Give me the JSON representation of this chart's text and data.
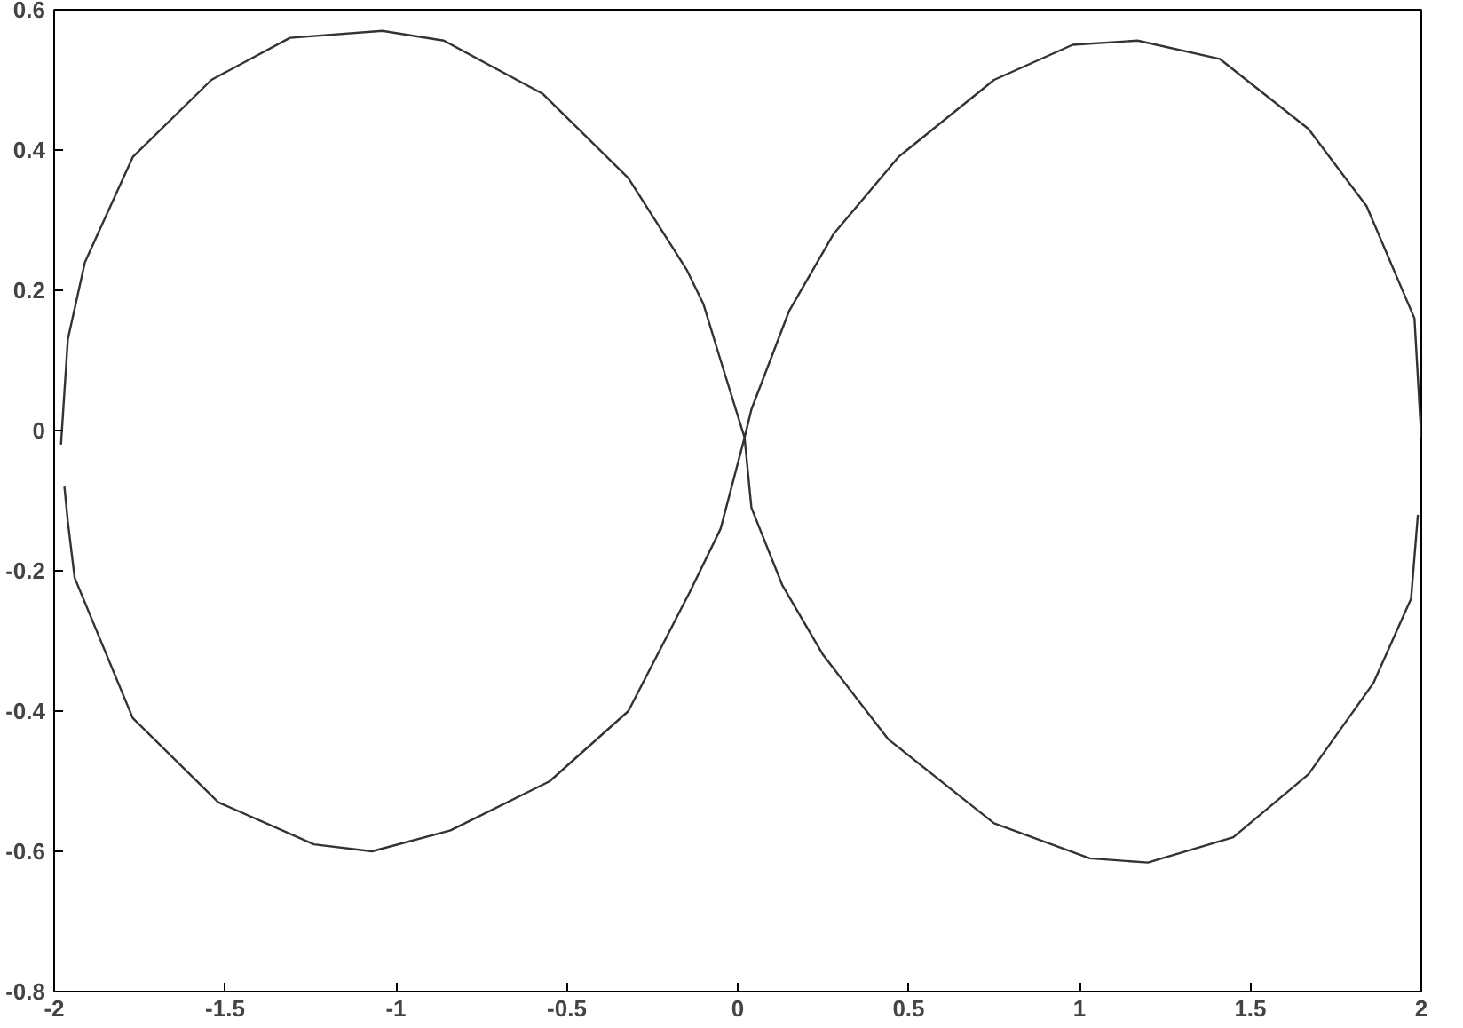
{
  "chart_data": {
    "type": "line",
    "xlim": [
      -2,
      2
    ],
    "ylim": [
      -0.8,
      0.6
    ],
    "xticks": [
      -2,
      -1.5,
      -1,
      -0.5,
      0,
      0.5,
      1,
      1.5,
      2
    ],
    "yticks": [
      -0.8,
      -0.6,
      -0.4,
      -0.2,
      0,
      0.2,
      0.4,
      0.6
    ],
    "marker": "none",
    "line_style": "solid",
    "series": [
      {
        "color": "#333333",
        "x": [
          -1.98,
          -1.96,
          -1.91,
          -1.77,
          -1.54,
          -1.31,
          -1.04,
          -0.86,
          -0.57,
          -0.32,
          -0.15,
          -0.1,
          -0.05,
          0.02,
          0.04,
          0.15,
          0.28,
          0.47,
          0.75,
          0.98,
          1.17,
          1.41,
          1.67,
          1.84,
          1.98,
          2.0
        ],
        "values": [
          -0.02,
          0.13,
          0.24,
          0.39,
          0.5,
          0.56,
          0.57,
          0.556,
          0.48,
          0.36,
          0.23,
          0.18,
          0.1,
          -0.01,
          0.03,
          0.17,
          0.28,
          0.39,
          0.5,
          0.55,
          0.556,
          0.53,
          0.43,
          0.32,
          0.16,
          -0.01
        ]
      },
      {
        "color": "#333333",
        "x": [
          -1.97,
          -1.96,
          -1.94,
          -1.77,
          -1.52,
          -1.24,
          -1.07,
          -0.84,
          -0.55,
          -0.32,
          -0.14,
          -0.05,
          0.02,
          0.04,
          0.13,
          0.25,
          0.44,
          0.75,
          1.03,
          1.2,
          1.45,
          1.67,
          1.86,
          1.97,
          1.99
        ],
        "values": [
          -0.08,
          -0.13,
          -0.21,
          -0.41,
          -0.53,
          -0.59,
          -0.6,
          -0.57,
          -0.5,
          -0.4,
          -0.23,
          -0.14,
          -0.01,
          -0.11,
          -0.22,
          -0.32,
          -0.44,
          -0.56,
          -0.61,
          -0.616,
          -0.58,
          -0.49,
          -0.36,
          -0.24,
          -0.12
        ]
      }
    ]
  }
}
